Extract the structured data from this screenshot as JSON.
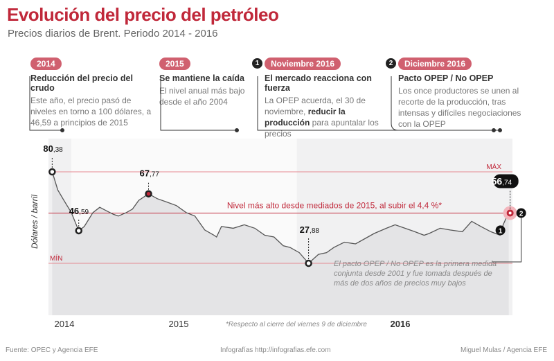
{
  "title": "Evolución del precio del petróleo",
  "subtitle": "Precios diarios de Brent. Periodo 2014 - 2016",
  "cards": [
    {
      "tag": "2014",
      "num": "",
      "heading": "Reducción del precio del crudo",
      "body": "Este año, el precio pasó de niveles en torno a 100 dólares, a 46,59 a principios de 2015"
    },
    {
      "tag": "2015",
      "num": "",
      "heading": "Se mantiene la caída",
      "body": "El nivel anual más bajo desde el año 2004"
    },
    {
      "tag": "Noviembre 2016",
      "num": "1",
      "heading": "El mercado reacciona con fuerza",
      "body_pre": "La OPEP acuerda, el 30 de noviembre, ",
      "body_bold": "reducir la producción",
      "body_post": " para apuntalar los precios"
    },
    {
      "tag": "Diciembre 2016",
      "num": "2",
      "heading": "Pacto OPEP / No OPEP",
      "body": "Los once productores se unen al recorte de la producción, tras intensas y difíciles negociaciones con la OPEP"
    }
  ],
  "chart_data": {
    "type": "line",
    "ylabel": "Dólares / barril",
    "x_labels": [
      "2014",
      "2015",
      "2016"
    ],
    "ylim": [
      20,
      90
    ],
    "series": [
      {
        "x": [
          "2014-12-01",
          "2014-12-10",
          "2014-12-20",
          "2015-01-01",
          "2015-01-13",
          "2015-01-22",
          "2015-02-05",
          "2015-02-16",
          "2015-02-27",
          "2015-03-10",
          "2015-03-18",
          "2015-03-31",
          "2015-04-10",
          "2015-04-20",
          "2015-05-06",
          "2015-05-20",
          "2015-06-05",
          "2015-06-20",
          "2015-07-06",
          "2015-07-20",
          "2015-08-05",
          "2015-08-20",
          "2015-08-24",
          "2015-09-01",
          "2015-09-20",
          "2015-10-08",
          "2015-10-25",
          "2015-11-10",
          "2015-11-25",
          "2015-12-10",
          "2015-12-21",
          "2016-01-05",
          "2016-01-20",
          "2016-02-05",
          "2016-02-18",
          "2016-03-01",
          "2016-03-18",
          "2016-04-05",
          "2016-04-20",
          "2016-05-05",
          "2016-05-25",
          "2016-06-08",
          "2016-06-24",
          "2016-07-10",
          "2016-07-25",
          "2016-08-02",
          "2016-08-20",
          "2016-09-05",
          "2016-09-25",
          "2016-10-10",
          "2016-10-25",
          "2016-11-10",
          "2016-11-25",
          "2016-11-30",
          "2016-12-05",
          "2016-12-09"
        ],
        "values": [
          80.38,
          70,
          64,
          57,
          46.59,
          49,
          57,
          60,
          58,
          56,
          55,
          57,
          59,
          64,
          67.77,
          65,
          63,
          61,
          57,
          55,
          47,
          44,
          43,
          49,
          48,
          50,
          48,
          44,
          43,
          38,
          37,
          34,
          27.88,
          33,
          34,
          37,
          40,
          39,
          42,
          45,
          48,
          50,
          48,
          46,
          44,
          45,
          48,
          47,
          46,
          52,
          49,
          46,
          44,
          50,
          54,
          56.74
        ]
      }
    ],
    "points": [
      {
        "date": "2014-12-01",
        "int": "80",
        "dec": ",38"
      },
      {
        "date": "2015-01-13",
        "int": "46",
        "dec": ",59"
      },
      {
        "date": "2015-05-06",
        "int": "67",
        "dec": ",77"
      },
      {
        "date": "2016-01-20",
        "int": "27",
        "dec": ",88"
      },
      {
        "date": "2016-12-09",
        "int": "56",
        "dec": ",74"
      }
    ],
    "max_label": "MÁX",
    "min_label": "MÍN",
    "annotation_high": "Nivel más alto desde mediados de 2015, al subir el 4,4 %*",
    "annotation_pact": [
      "El pacto OPEP / No OPEP es la primera medida",
      "conjunta desde 2001 y fue tomada después de",
      "más de dos años de precios muy bajos"
    ],
    "footnote": "*Respecto al cierre del viernes 9 de diciembre",
    "marker_1": "1",
    "marker_2": "2",
    "colors": {
      "accent": "#c0283a",
      "line": "#555555",
      "area": "#e4e4e6",
      "band": "#f1f1f2",
      "guide": "#e58a93"
    }
  },
  "footer": {
    "source": "Fuente: OPEC y Agencia EFE",
    "site": "Infografías http://infografias.efe.com",
    "author": "Miguel Mulas / Agencia EFE"
  }
}
